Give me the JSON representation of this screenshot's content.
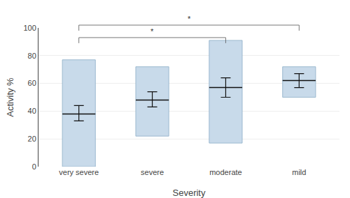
{
  "chart_data": {
    "type": "bar",
    "xlabel": "Severity",
    "ylabel": "Activity %",
    "categories": [
      "very severe",
      "severe",
      "moderate",
      "mild"
    ],
    "low": [
      0,
      22,
      17,
      50
    ],
    "high": [
      77,
      72,
      91,
      72
    ],
    "means": [
      38,
      48,
      57,
      62
    ],
    "ci_lower": [
      33,
      43,
      50,
      57
    ],
    "ci_upper": [
      44,
      54,
      64,
      67
    ],
    "color": "#c8daea",
    "ylim": [
      0,
      100
    ],
    "yticks": [
      0,
      20,
      40,
      60,
      80,
      100
    ],
    "grid": true,
    "brackets": [
      {
        "from": "very severe",
        "to": "moderate",
        "label": "*"
      },
      {
        "from": "very severe",
        "to": "mild",
        "label": "*"
      }
    ]
  }
}
